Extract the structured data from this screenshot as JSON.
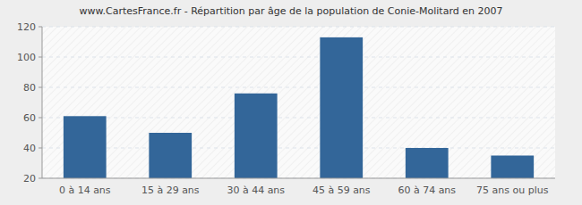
{
  "chart_data": {
    "type": "bar",
    "title": "www.CartesFrance.fr - Répartition par âge de la population de Conie-Molitard en 2007",
    "categories": [
      "0 à 14 ans",
      "15 à 29 ans",
      "30 à 44 ans",
      "45 à 59 ans",
      "60 à 74 ans",
      "75 ans ou plus"
    ],
    "values": [
      61,
      50,
      76,
      113,
      40,
      35
    ],
    "color": "#336699",
    "ylim": [
      20,
      120
    ],
    "yticks": [
      20,
      40,
      60,
      80,
      100,
      120
    ],
    "grid": true
  }
}
